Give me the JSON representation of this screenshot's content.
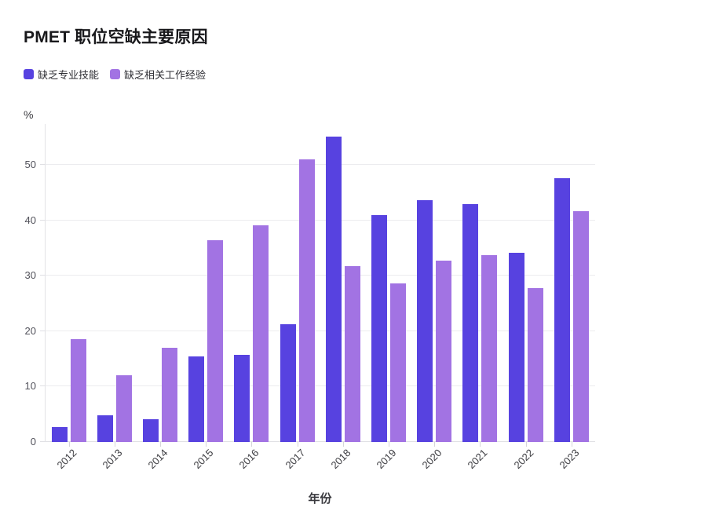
{
  "header": {
    "title": "PMET 职位空缺主要原因"
  },
  "legend": {
    "items": [
      {
        "key": "skills",
        "label": "缺乏专业技能",
        "color": "#5742E0"
      },
      {
        "key": "experience",
        "label": "缺乏相关工作经验",
        "color": "#A273E3"
      }
    ]
  },
  "chart_data": {
    "type": "bar",
    "title": "PMET 职位空缺主要原因",
    "xlabel": "年份",
    "ylabel": "%",
    "ylim": [
      0,
      57.4
    ],
    "yticks": [
      0,
      10,
      20,
      30,
      40,
      50
    ],
    "grid": true,
    "legend_position": "top-left",
    "categories": [
      "2012",
      "2013",
      "2014",
      "2015",
      "2016",
      "2017",
      "2018",
      "2019",
      "2020",
      "2021",
      "2022",
      "2023"
    ],
    "series": [
      {
        "key": "skills",
        "name": "缺乏专业技能",
        "color": "#5742E0",
        "values": [
          2.7,
          4.8,
          4.1,
          15.4,
          15.7,
          21.2,
          55.2,
          41.0,
          43.6,
          43.0,
          34.1,
          47.6
        ]
      },
      {
        "key": "experience",
        "name": "缺乏相关工作经验",
        "color": "#A273E3",
        "values": [
          18.5,
          12.1,
          17.0,
          36.4,
          39.1,
          51.0,
          31.7,
          28.7,
          32.8,
          33.8,
          27.8,
          41.6
        ]
      }
    ]
  }
}
